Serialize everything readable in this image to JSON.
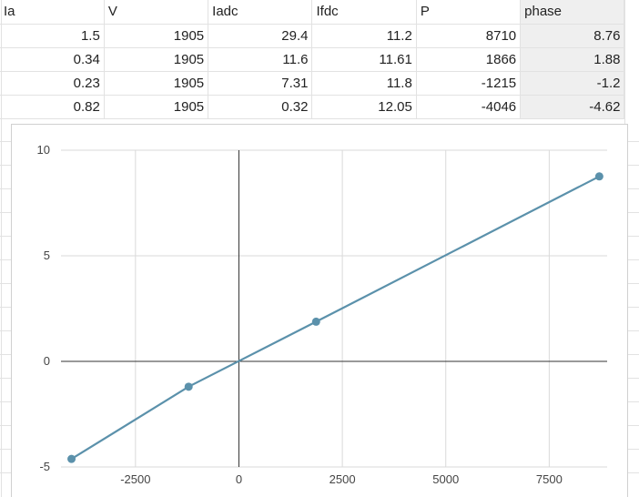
{
  "table": {
    "headers": [
      "Ia",
      "V",
      "Iadc",
      "Ifdc",
      "P",
      "phase"
    ],
    "rows": [
      [
        "1.5",
        "1905",
        "29.4",
        "11.2",
        "8710",
        "8.76"
      ],
      [
        "0.34",
        "1905",
        "11.6",
        "11.61",
        "1866",
        "1.88"
      ],
      [
        "0.23",
        "1905",
        "7.31",
        "11.8",
        "-1215",
        "-1.2"
      ],
      [
        "0.82",
        "1905",
        "0.32",
        "12.05",
        "-4046",
        "-4.62"
      ]
    ]
  },
  "chart_data": {
    "type": "line",
    "title": "",
    "xlabel": "",
    "ylabel": "",
    "x": [
      8710,
      1866,
      -1215,
      -4046
    ],
    "series": [
      {
        "values": [
          8.76,
          1.88,
          -1.2,
          -4.62
        ],
        "color": "#5b91ab"
      }
    ],
    "xlim": [
      -4300,
      8900
    ],
    "ylim": [
      -5,
      10
    ],
    "x_ticks": [
      "-2500",
      "0",
      "2500",
      "5000",
      "7500"
    ],
    "y_ticks": [
      "10",
      "5",
      "0",
      "-5"
    ],
    "grid": true,
    "legend": "none"
  },
  "colors": {
    "series": "#5b91ab",
    "grid": "#d9d9d9",
    "axis": "#333333",
    "selected_column": "#efefef"
  }
}
